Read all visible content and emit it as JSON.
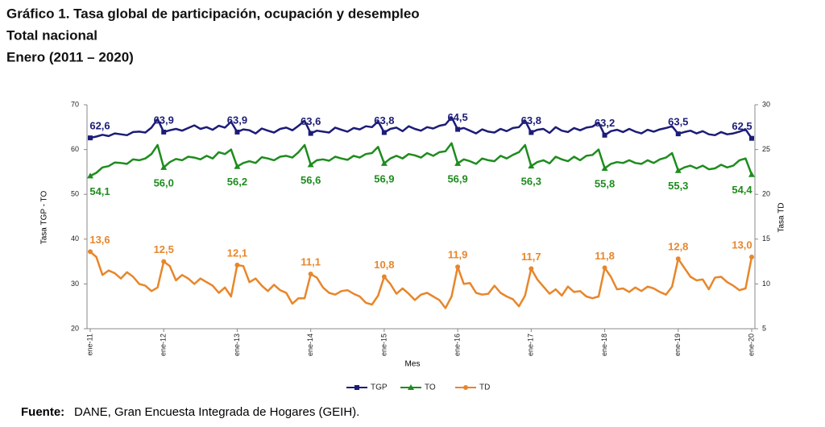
{
  "chart_data": {
    "type": "line",
    "title": "Gráfico 1. Tasa global de participación, ocupación y desempleo",
    "subtitle": "Total nacional",
    "period": "Enero (2011 – 2020)",
    "x_label": "Mes",
    "y_label": "Tasa TGP - TO",
    "y2_label": "Tasa TD",
    "source_label": "Fuente:",
    "source": "DANE, Gran Encuesta Integrada de Hogares (GEIH).",
    "categories": [
      "ene-11",
      null,
      null,
      null,
      null,
      null,
      null,
      null,
      null,
      null,
      null,
      null,
      "ene-12",
      null,
      null,
      null,
      null,
      null,
      null,
      null,
      null,
      null,
      null,
      null,
      "ene-13",
      null,
      null,
      null,
      null,
      null,
      null,
      null,
      null,
      null,
      null,
      null,
      "ene-14",
      null,
      null,
      null,
      null,
      null,
      null,
      null,
      null,
      null,
      null,
      null,
      "ene-15",
      null,
      null,
      null,
      null,
      null,
      null,
      null,
      null,
      null,
      null,
      null,
      "ene-16",
      null,
      null,
      null,
      null,
      null,
      null,
      null,
      null,
      null,
      null,
      null,
      "ene-17",
      null,
      null,
      null,
      null,
      null,
      null,
      null,
      null,
      null,
      null,
      null,
      "ene-18",
      null,
      null,
      null,
      null,
      null,
      null,
      null,
      null,
      null,
      null,
      null,
      "ene-19",
      null,
      null,
      null,
      null,
      null,
      null,
      null,
      null,
      null,
      null,
      null,
      "ene-20"
    ],
    "ylim": [
      20,
      70
    ],
    "yticks": [
      20,
      30,
      40,
      50,
      60,
      70
    ],
    "y2lim": [
      5,
      30
    ],
    "y2ticks": [
      5,
      10,
      15,
      20,
      25,
      30
    ],
    "legend": "bottom",
    "series": [
      {
        "name": "TGP",
        "color": "#1c1c78",
        "marker": "square",
        "values": [
          62.6,
          62.9,
          63.3,
          63.0,
          63.6,
          63.4,
          63.2,
          63.9,
          64.0,
          63.8,
          64.9,
          66.8,
          63.9,
          64.3,
          64.6,
          64.2,
          64.8,
          65.4,
          64.6,
          65.0,
          64.4,
          65.3,
          64.9,
          66.2,
          63.9,
          64.5,
          64.3,
          63.6,
          64.7,
          64.2,
          63.8,
          64.6,
          64.9,
          64.3,
          65.3,
          66.4,
          63.6,
          64.2,
          64.0,
          63.8,
          64.9,
          64.4,
          64.0,
          64.8,
          64.5,
          65.2,
          65.0,
          66.3,
          63.8,
          64.6,
          64.9,
          64.1,
          65.2,
          64.6,
          64.2,
          65.0,
          64.7,
          65.3,
          65.6,
          67.2,
          64.5,
          64.8,
          64.2,
          63.6,
          64.5,
          64.0,
          63.8,
          64.6,
          64.1,
          64.8,
          65.0,
          66.5,
          63.8,
          64.4,
          64.6,
          63.7,
          65.0,
          64.2,
          63.9,
          64.8,
          64.3,
          64.9,
          65.1,
          66.0,
          63.2,
          64.1,
          64.4,
          63.9,
          64.6,
          64.0,
          63.6,
          64.4,
          64.0,
          64.5,
          64.8,
          65.2,
          63.5,
          63.9,
          64.2,
          63.6,
          64.1,
          63.4,
          63.2,
          63.9,
          63.4,
          63.6,
          64.0,
          64.5,
          62.5
        ],
        "value_labels": [
          "62,6",
          null,
          null,
          null,
          null,
          null,
          null,
          null,
          null,
          null,
          null,
          null,
          "63,9",
          null,
          null,
          null,
          null,
          null,
          null,
          null,
          null,
          null,
          null,
          null,
          "63,9",
          null,
          null,
          null,
          null,
          null,
          null,
          null,
          null,
          null,
          null,
          null,
          "63,6",
          null,
          null,
          null,
          null,
          null,
          null,
          null,
          null,
          null,
          null,
          null,
          "63,8",
          null,
          null,
          null,
          null,
          null,
          null,
          null,
          null,
          null,
          null,
          null,
          "64,5",
          null,
          null,
          null,
          null,
          null,
          null,
          null,
          null,
          null,
          null,
          null,
          "63,8",
          null,
          null,
          null,
          null,
          null,
          null,
          null,
          null,
          null,
          null,
          null,
          "63,2",
          null,
          null,
          null,
          null,
          null,
          null,
          null,
          null,
          null,
          null,
          null,
          "63,5",
          null,
          null,
          null,
          null,
          null,
          null,
          null,
          null,
          null,
          null,
          null,
          "62,5"
        ]
      },
      {
        "name": "TO",
        "color": "#1e8c1e",
        "marker": "triangle",
        "values": [
          54.1,
          54.8,
          56.0,
          56.3,
          57.1,
          57.0,
          56.8,
          57.8,
          57.6,
          58.0,
          59.0,
          61.0,
          56.0,
          57.2,
          57.9,
          57.6,
          58.4,
          58.2,
          57.8,
          58.6,
          58.0,
          59.4,
          59.0,
          60.0,
          56.2,
          57.0,
          57.4,
          57.0,
          58.3,
          58.0,
          57.6,
          58.4,
          58.6,
          58.2,
          59.4,
          61.0,
          56.6,
          57.6,
          57.8,
          57.5,
          58.4,
          58.0,
          57.7,
          58.6,
          58.2,
          59.0,
          59.2,
          60.6,
          56.9,
          58.0,
          58.6,
          58.0,
          59.0,
          58.7,
          58.2,
          59.2,
          58.6,
          59.4,
          59.6,
          61.4,
          56.9,
          57.8,
          57.4,
          56.8,
          58.0,
          57.6,
          57.4,
          58.6,
          58.0,
          58.8,
          59.4,
          61.0,
          56.3,
          57.2,
          57.6,
          56.9,
          58.4,
          57.8,
          57.4,
          58.4,
          57.6,
          58.6,
          58.8,
          60.0,
          55.8,
          56.8,
          57.2,
          57.0,
          57.6,
          57.0,
          56.8,
          57.6,
          57.0,
          57.8,
          58.2,
          59.2,
          55.3,
          56.0,
          56.4,
          55.8,
          56.4,
          55.6,
          55.8,
          56.6,
          56.0,
          56.4,
          57.6,
          58.0,
          54.4
        ],
        "value_labels": [
          "54,1",
          null,
          null,
          null,
          null,
          null,
          null,
          null,
          null,
          null,
          null,
          null,
          "56,0",
          null,
          null,
          null,
          null,
          null,
          null,
          null,
          null,
          null,
          null,
          null,
          "56,2",
          null,
          null,
          null,
          null,
          null,
          null,
          null,
          null,
          null,
          null,
          null,
          "56,6",
          null,
          null,
          null,
          null,
          null,
          null,
          null,
          null,
          null,
          null,
          null,
          "56,9",
          null,
          null,
          null,
          null,
          null,
          null,
          null,
          null,
          null,
          null,
          null,
          "56,9",
          null,
          null,
          null,
          null,
          null,
          null,
          null,
          null,
          null,
          null,
          null,
          "56,3",
          null,
          null,
          null,
          null,
          null,
          null,
          null,
          null,
          null,
          null,
          null,
          "55,8",
          null,
          null,
          null,
          null,
          null,
          null,
          null,
          null,
          null,
          null,
          null,
          "55,3",
          null,
          null,
          null,
          null,
          null,
          null,
          null,
          null,
          null,
          null,
          null,
          "54,4"
        ]
      },
      {
        "name": "TD",
        "color": "#e8862a",
        "marker": "circle",
        "axis": "y2",
        "values": [
          13.6,
          13.0,
          11.0,
          11.5,
          11.2,
          10.6,
          11.3,
          10.8,
          10.0,
          9.8,
          9.2,
          9.6,
          12.5,
          12.0,
          10.4,
          11.0,
          10.6,
          10.0,
          10.6,
          10.2,
          9.8,
          9.0,
          9.6,
          8.6,
          12.1,
          12.0,
          10.2,
          10.6,
          9.8,
          9.2,
          9.9,
          9.3,
          9.0,
          7.8,
          8.4,
          8.4,
          11.1,
          10.7,
          9.6,
          9.0,
          8.8,
          9.2,
          9.3,
          8.9,
          8.6,
          7.9,
          7.7,
          8.7,
          10.8,
          10.0,
          8.9,
          9.5,
          8.9,
          8.2,
          8.8,
          9.0,
          8.6,
          8.2,
          7.3,
          8.6,
          11.9,
          10.0,
          10.1,
          9.0,
          8.8,
          8.9,
          9.8,
          9.0,
          8.6,
          8.3,
          7.5,
          8.7,
          11.7,
          10.5,
          9.7,
          8.9,
          9.4,
          8.7,
          9.7,
          9.1,
          9.2,
          8.6,
          8.4,
          8.6,
          11.8,
          10.8,
          9.4,
          9.5,
          9.1,
          9.6,
          9.2,
          9.7,
          9.5,
          9.1,
          8.8,
          9.7,
          12.8,
          11.8,
          10.8,
          10.4,
          10.5,
          9.4,
          10.7,
          10.8,
          10.2,
          9.8,
          9.3,
          9.5,
          13.0
        ],
        "value_labels": [
          "13,6",
          null,
          null,
          null,
          null,
          null,
          null,
          null,
          null,
          null,
          null,
          null,
          "12,5",
          null,
          null,
          null,
          null,
          null,
          null,
          null,
          null,
          null,
          null,
          null,
          "12,1",
          null,
          null,
          null,
          null,
          null,
          null,
          null,
          null,
          null,
          null,
          null,
          "11,1",
          null,
          null,
          null,
          null,
          null,
          null,
          null,
          null,
          null,
          null,
          null,
          "10,8",
          null,
          null,
          null,
          null,
          null,
          null,
          null,
          null,
          null,
          null,
          null,
          "11,9",
          null,
          null,
          null,
          null,
          null,
          null,
          null,
          null,
          null,
          null,
          null,
          "11,7",
          null,
          null,
          null,
          null,
          null,
          null,
          null,
          null,
          null,
          null,
          null,
          "11,8",
          null,
          null,
          null,
          null,
          null,
          null,
          null,
          null,
          null,
          null,
          null,
          "12,8",
          null,
          null,
          null,
          null,
          null,
          null,
          null,
          null,
          null,
          null,
          null,
          "13,0"
        ]
      }
    ]
  }
}
